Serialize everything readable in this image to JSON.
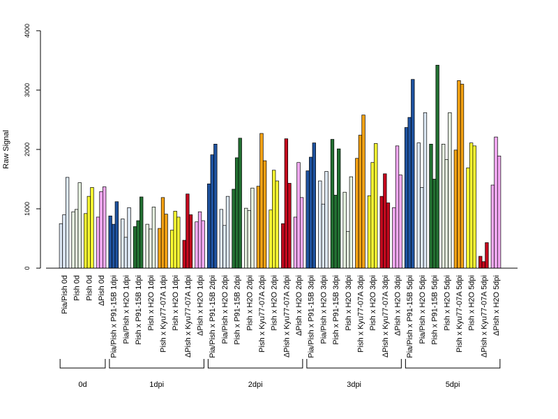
{
  "chart_data": {
    "type": "bar",
    "ylabel": "Raw Signal",
    "ylim": [
      0,
      4000
    ],
    "yticks": [
      0,
      1000,
      2000,
      3000,
      4000
    ],
    "grid": false,
    "legend": "none",
    "palette": {
      "lightblue": "#dde8f5",
      "blue": "#1f53a0",
      "green": "#237032",
      "lightgreen": "#e6f2e0",
      "yellow": "#ffff33",
      "orange": "#f5a214",
      "red": "#c4091e",
      "pink": "#f5aaf5"
    },
    "categories": [
      {
        "label": "Pia/Pish 0d",
        "color": "lightblue",
        "values": [
          750,
          900,
          1530
        ]
      },
      {
        "label": "Pish 0d",
        "color": "lightgreen",
        "values": [
          950,
          990,
          1440
        ]
      },
      {
        "label": "Pish 0d",
        "color": "yellow",
        "values": [
          920,
          1210,
          1360
        ]
      },
      {
        "label": "ΔPish 0d",
        "color": "pink",
        "values": [
          860,
          1290,
          1370
        ]
      },
      {
        "label": "Pia/Pish x P91-15B 1dpi",
        "color": "blue",
        "values": [
          880,
          740,
          1120
        ]
      },
      {
        "label": "Pia/Pish x H2O 1dpi",
        "color": "lightblue",
        "values": [
          830,
          520,
          1020
        ]
      },
      {
        "label": "Pish x P91-15B 1dpi",
        "color": "green",
        "values": [
          700,
          800,
          1200
        ]
      },
      {
        "label": "Pish x H2O 1dpi",
        "color": "lightgreen",
        "values": [
          740,
          660,
          1030
        ]
      },
      {
        "label": "Pish x Kyu77-07A 1dpi",
        "color": "orange",
        "values": [
          670,
          1190,
          910
        ]
      },
      {
        "label": "Pish x H2O 1dpi",
        "color": "yellow",
        "values": [
          640,
          960,
          860
        ]
      },
      {
        "label": "ΔPish x Kyu77-07A 1dpi",
        "color": "red",
        "values": [
          470,
          1250,
          900
        ]
      },
      {
        "label": "ΔPish x H2O 1dpi",
        "color": "pink",
        "values": [
          780,
          950,
          800
        ]
      },
      {
        "label": "Pia/Pish x P91-15B 2dpi",
        "color": "blue",
        "values": [
          1420,
          1910,
          2090
        ]
      },
      {
        "label": "Pia/Pish x H2O 2dpi",
        "color": "lightblue",
        "values": [
          990,
          720,
          1210
        ]
      },
      {
        "label": "Pish x P91-15B 2dpi",
        "color": "green",
        "values": [
          1330,
          1860,
          2190
        ]
      },
      {
        "label": "Pish x H2O 2dpi",
        "color": "lightgreen",
        "values": [
          1010,
          970,
          1350
        ]
      },
      {
        "label": "Pish x Kyu77-07A 2dpi",
        "color": "orange",
        "values": [
          1380,
          2270,
          1810
        ]
      },
      {
        "label": "Pish x H2O 2dpi",
        "color": "yellow",
        "values": [
          980,
          1650,
          1470
        ]
      },
      {
        "label": "ΔPish x Kyu77-07A 2dpi",
        "color": "red",
        "values": [
          750,
          2180,
          1430
        ]
      },
      {
        "label": "ΔPish x H2O 2dpi",
        "color": "pink",
        "values": [
          860,
          1780,
          1190
        ]
      },
      {
        "label": "Pia/Pish x P91-15B 3dpi",
        "color": "blue",
        "values": [
          1640,
          1870,
          2110
        ]
      },
      {
        "label": "Pia/Pish x H2O 3dpi",
        "color": "lightblue",
        "values": [
          1470,
          1080,
          1630
        ]
      },
      {
        "label": "Pish x P91-15B 3dpi",
        "color": "green",
        "values": [
          2170,
          1230,
          2010
        ]
      },
      {
        "label": "Pish x H2O 3dpi",
        "color": "lightgreen",
        "values": [
          1280,
          620,
          1540
        ]
      },
      {
        "label": "Pish x Kyu77-07A 3dpi",
        "color": "orange",
        "values": [
          1850,
          2240,
          2580
        ]
      },
      {
        "label": "Pish x H2O 3dpi",
        "color": "yellow",
        "values": [
          1220,
          1780,
          2100
        ]
      },
      {
        "label": "ΔPish x Kyu77-07A 3dpi",
        "color": "red",
        "values": [
          1210,
          1590,
          1100
        ]
      },
      {
        "label": "ΔPish x H2O 3dpi",
        "color": "pink",
        "values": [
          1020,
          2060,
          1570
        ]
      },
      {
        "label": "Pia/Pish x P91-15B 5dpi",
        "color": "blue",
        "values": [
          2370,
          2540,
          3180
        ]
      },
      {
        "label": "Pia/Pish x H2O 5dpi",
        "color": "lightblue",
        "values": [
          2110,
          1360,
          2620
        ]
      },
      {
        "label": "Pish x P91-15B 5dpi",
        "color": "green",
        "values": [
          2090,
          1500,
          3420
        ]
      },
      {
        "label": "Pish x H2O 5dpi",
        "color": "lightgreen",
        "values": [
          2090,
          1830,
          2620
        ]
      },
      {
        "label": "Pish x Kyu77-07A 5dpi",
        "color": "orange",
        "values": [
          1990,
          3160,
          3100
        ]
      },
      {
        "label": "Pish x H2O 5dpi",
        "color": "yellow",
        "values": [
          1690,
          2110,
          2060
        ]
      },
      {
        "label": "ΔPish x Kyu77-07A 5dpi",
        "color": "red",
        "values": [
          200,
          110,
          430
        ]
      },
      {
        "label": "ΔPish x H2O 5dpi",
        "color": "pink",
        "values": [
          1400,
          2210,
          1890
        ]
      }
    ],
    "groups": [
      {
        "label": "0d",
        "start": 0,
        "end": 3
      },
      {
        "label": "1dpi",
        "start": 4,
        "end": 11
      },
      {
        "label": "2dpi",
        "start": 12,
        "end": 19
      },
      {
        "label": "3dpi",
        "start": 20,
        "end": 27
      },
      {
        "label": "5dpi",
        "start": 28,
        "end": 35
      }
    ]
  }
}
